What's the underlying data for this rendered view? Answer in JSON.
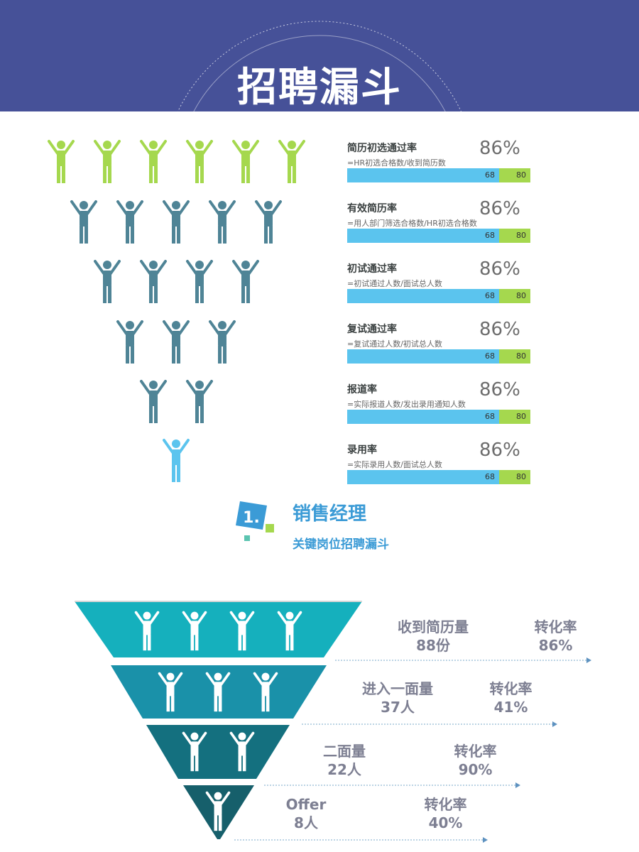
{
  "title": "招聘漏斗",
  "rates": [
    {
      "name": "简历初选通过率",
      "formula": "=HR初选合格数/收到简历数",
      "pct": "86%",
      "bar_a": "68",
      "bar_b": "80"
    },
    {
      "name": "有效简历率",
      "formula": "=用人部门筛选合格数/HR初选合格数",
      "pct": "86%",
      "bar_a": "68",
      "bar_b": "80"
    },
    {
      "name": "初试通过率",
      "formula": "=初试通过人数/面试总人数",
      "pct": "86%",
      "bar_a": "68",
      "bar_b": "80"
    },
    {
      "name": "复试通过率",
      "formula": "=复试通过人数/初试总人数",
      "pct": "86%",
      "bar_a": "68",
      "bar_b": "80"
    },
    {
      "name": "报道率",
      "formula": "=实际报道人数/发出录用通知人数",
      "pct": "86%",
      "bar_a": "68",
      "bar_b": "80"
    },
    {
      "name": "录用率",
      "formula": "=实际录用人数/面试总人数",
      "pct": "86%",
      "bar_a": "68",
      "bar_b": "80"
    }
  ],
  "section": {
    "number": "1.",
    "title": "销售经理",
    "subtitle": "关键岗位招聘漏斗"
  },
  "funnel": [
    {
      "label": "收到简历量",
      "count": "88份",
      "rate_label": "转化率",
      "rate": "86%",
      "people": 4
    },
    {
      "label": "进入一面量",
      "count": "37人",
      "rate_label": "转化率",
      "rate": "41%",
      "people": 3
    },
    {
      "label": "二面量",
      "count": "22人",
      "rate_label": "转化率",
      "rate": "90%",
      "people": 2
    },
    {
      "label": "Offer",
      "count": "8人",
      "rate_label": "转化率",
      "rate": "40%",
      "people": 1
    }
  ],
  "colors": {
    "header": "#465198",
    "green": "#a5d84e",
    "teal": "#4f8496",
    "light_blue": "#5bc4ee",
    "funnel": [
      "#15b0bd",
      "#1a91a9",
      "#14707f",
      "#165f6b"
    ]
  },
  "people_rows": [
    6,
    5,
    4,
    3,
    2,
    1
  ]
}
